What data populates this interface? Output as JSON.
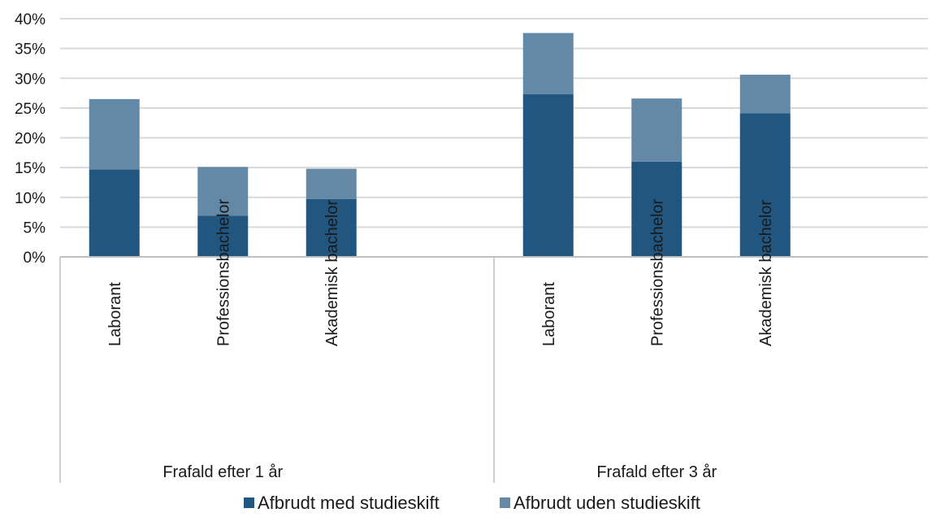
{
  "chart_data": {
    "type": "bar",
    "stacked": true,
    "title": "",
    "xlabel": "",
    "ylabel": "",
    "ylim": [
      0,
      40
    ],
    "y_ticks": [
      "0%",
      "5%",
      "10%",
      "15%",
      "20%",
      "25%",
      "30%",
      "35%",
      "40%"
    ],
    "y_tick_values": [
      0,
      5,
      10,
      15,
      20,
      25,
      30,
      35,
      40
    ],
    "grid": true,
    "legend_position": "bottom",
    "groups": [
      {
        "label": "Frafald efter 1 år",
        "categories": [
          "Laborant",
          "Professionsbachelor",
          "Akademisk bachelor"
        ]
      },
      {
        "label": "Frafald efter 3 år",
        "categories": [
          "Laborant",
          "Professionsbachelor",
          "Akademisk bachelor"
        ]
      }
    ],
    "series": [
      {
        "name": "Afbrudt med studieskift",
        "color": "#215680",
        "values": [
          14.7,
          6.9,
          9.7,
          27.3,
          16.0,
          24.1
        ]
      },
      {
        "name": "Afbrudt uden studieskift",
        "color": "#6489A6",
        "values": [
          11.8,
          8.2,
          5.1,
          10.3,
          10.6,
          6.5
        ]
      }
    ]
  }
}
